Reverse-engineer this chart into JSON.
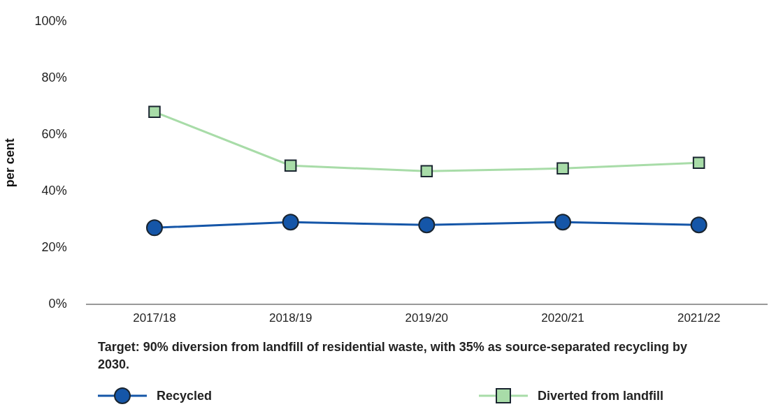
{
  "chart_data": {
    "type": "line",
    "ylabel": "per cent",
    "categories": [
      "2017/18",
      "2018/19",
      "2019/20",
      "2020/21",
      "2021/22"
    ],
    "series": [
      {
        "name": "Recycled",
        "color": "#1556a8",
        "marker": "circle",
        "values": [
          27,
          29,
          28,
          29,
          28
        ]
      },
      {
        "name": "Diverted from landfill",
        "color": "#a8dca8",
        "marker": "square",
        "values": [
          68,
          49,
          47,
          48,
          50
        ]
      }
    ],
    "ylim": [
      0,
      100
    ],
    "yticks": [
      {
        "value": 0,
        "label": "0%"
      },
      {
        "value": 20,
        "label": "20%"
      },
      {
        "value": 40,
        "label": "40%"
      },
      {
        "value": 60,
        "label": "60%"
      },
      {
        "value": 80,
        "label": "80%"
      },
      {
        "value": 100,
        "label": "100%"
      }
    ],
    "grid": false,
    "legend": "bottom",
    "line_style": "solid",
    "annotations": [
      "Target: 90% diversion from landfill of residential waste, with 35% as source-separated recycling by 2030."
    ]
  }
}
